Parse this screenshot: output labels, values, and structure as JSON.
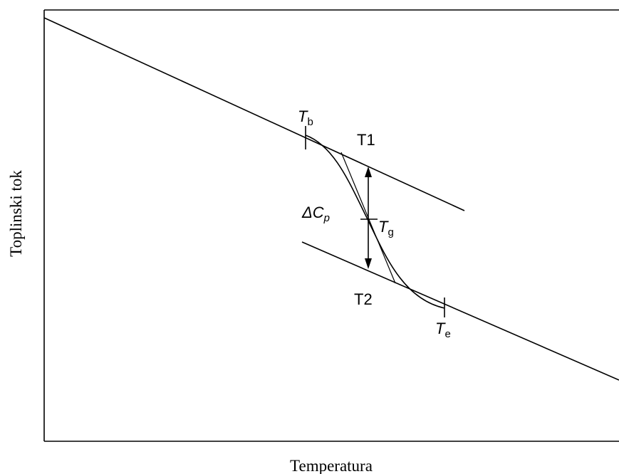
{
  "chart_data": {
    "type": "line",
    "title": "",
    "xlabel": "Temperatura",
    "ylabel": "Toplinski tok",
    "grid": false,
    "legend": "none",
    "annotations": {
      "t_begin": {
        "base": "T",
        "sub": "b"
      },
      "t_glass": {
        "base": "T",
        "sub": "g"
      },
      "t_end": {
        "base": "T",
        "sub": "e"
      },
      "tangent_1": "T1",
      "tangent_2": "T2",
      "delta_cp": {
        "symbol": "ΔC",
        "sub": "p"
      }
    }
  },
  "colors": {
    "line": "#000000",
    "background": "#ffffff"
  }
}
